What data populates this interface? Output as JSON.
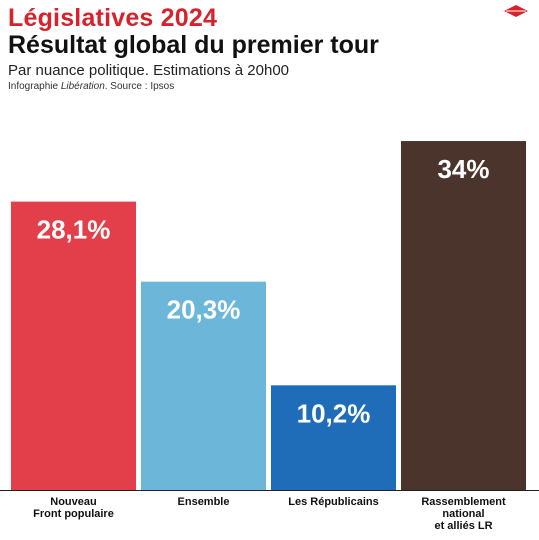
{
  "header": {
    "title": "Législatives 2024",
    "subtitle": "Résultat global du premier tour",
    "description": "Par nuance politique. Estimations à 20h00",
    "source_prefix": "Infographie ",
    "source_outlet": "Libération",
    "source_suffix": ". Source : Ipsos"
  },
  "logo": {
    "icon": "liberation-diamond-logo",
    "color": "#d7222b"
  },
  "chart_data": {
    "type": "bar",
    "title": "Résultat global du premier tour",
    "xlabel": "",
    "ylabel": "",
    "ylim": [
      0,
      38
    ],
    "grid": false,
    "legend": "none",
    "categories": [
      [
        "Nouveau",
        "Front populaire"
      ],
      [
        "Ensemble"
      ],
      [
        "Les Républicains"
      ],
      [
        "Rassemblement",
        "national",
        "et alliés LR"
      ]
    ],
    "values": [
      28.1,
      20.3,
      10.2,
      34
    ],
    "value_labels": [
      "28,1%",
      "20,3%",
      "10,2%",
      "34%"
    ],
    "colors": [
      "#e23f4a",
      "#6bb6d9",
      "#1f6db8",
      "#4a342c"
    ]
  }
}
